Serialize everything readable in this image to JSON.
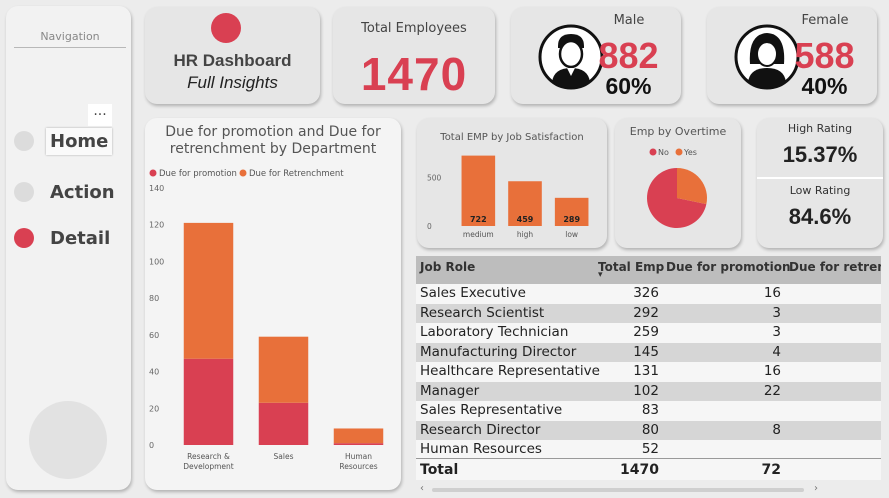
{
  "nav": {
    "title": "Navigation",
    "more": "...",
    "items": [
      {
        "label": "Home"
      },
      {
        "label": "Action"
      },
      {
        "label": "Detail"
      }
    ]
  },
  "header": {
    "title": "HR Dashboard",
    "subtitle": "Full Insights"
  },
  "kpi": {
    "total_label": "Total Employees",
    "total_value": "1470",
    "male_label": "Male",
    "male_value": "882",
    "male_pct": "60%",
    "female_label": "Female",
    "female_value": "588",
    "female_pct": "40%",
    "high_label": "High Rating",
    "high_value": "15.37%",
    "low_label": "Low Rating",
    "low_value": "84.6%"
  },
  "colors": {
    "red": "#d94052",
    "orange": "#e8703a",
    "icon": "person-headset-icon"
  },
  "chart_data": [
    {
      "type": "bar",
      "stacked": true,
      "title": "Due for promotion and Due for retrenchment by Department",
      "categories": [
        "Research & Development",
        "Sales",
        "Human Resources"
      ],
      "series": [
        {
          "name": "Due for promotion",
          "values": [
            47,
            23,
            1
          ],
          "color": "#d94052"
        },
        {
          "name": "Due for Retrenchment",
          "values": [
            74,
            36,
            8
          ],
          "color": "#e8703a"
        }
      ],
      "ylim": [
        0,
        140
      ],
      "yticks": [
        0,
        20,
        40,
        60,
        80,
        100,
        120,
        140
      ],
      "legend": "top-left"
    },
    {
      "type": "bar",
      "title": "Total EMP by Job Satisfaction",
      "categories": [
        "medium",
        "high",
        "low"
      ],
      "values": [
        722,
        459,
        289
      ],
      "yticks": [
        0,
        500
      ],
      "ylim": [
        0,
        800
      ],
      "color": "#e8703a"
    },
    {
      "type": "pie",
      "title": "Emp by Overtime",
      "categories": [
        "No",
        "Yes"
      ],
      "values": [
        1054,
        416
      ],
      "colors": [
        "#d94052",
        "#e8703a"
      ],
      "legend": "top"
    }
  ],
  "table": {
    "headers": [
      "Job Role",
      "Total Emp",
      "Due for promotion",
      "Due for retrenc"
    ],
    "rows": [
      {
        "role": "Sales Executive",
        "total": "326",
        "promo": "16"
      },
      {
        "role": "Research Scientist",
        "total": "292",
        "promo": "3"
      },
      {
        "role": "Laboratory Technician",
        "total": "259",
        "promo": "3"
      },
      {
        "role": "Manufacturing Director",
        "total": "145",
        "promo": "4"
      },
      {
        "role": "Healthcare Representative",
        "total": "131",
        "promo": "16"
      },
      {
        "role": "Manager",
        "total": "102",
        "promo": "22"
      },
      {
        "role": "Sales Representative",
        "total": "83",
        "promo": ""
      },
      {
        "role": "Research Director",
        "total": "80",
        "promo": "8"
      },
      {
        "role": "Human Resources",
        "total": "52",
        "promo": ""
      }
    ],
    "total": {
      "label": "Total",
      "total": "1470",
      "promo": "72"
    }
  },
  "scroll": {
    "left": "‹",
    "right": "›"
  }
}
